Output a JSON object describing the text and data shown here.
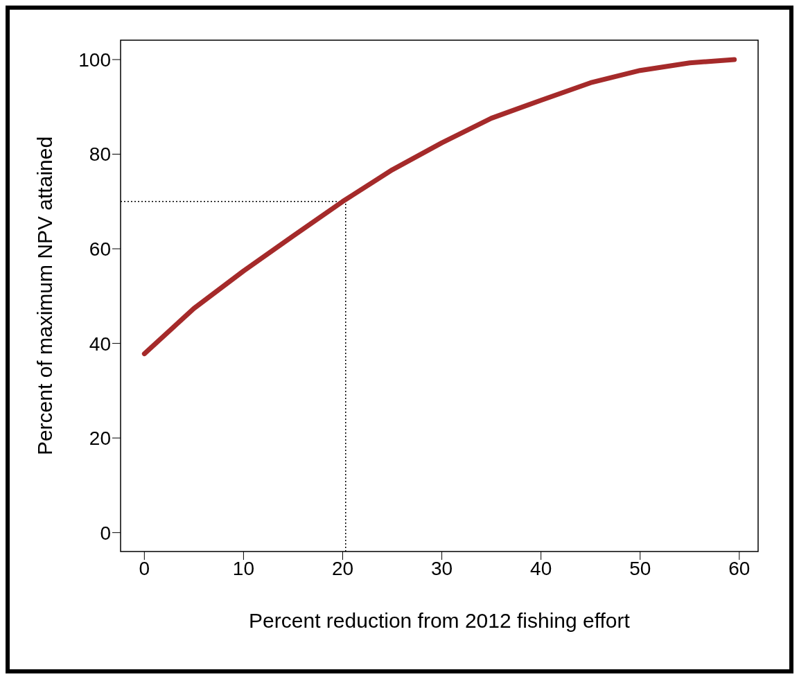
{
  "chart_data": {
    "type": "line",
    "xlabel": "Percent reduction from 2012 fishing effort",
    "ylabel": "Percent of maximum NPV attained",
    "x": [
      0,
      5,
      10,
      15,
      20,
      25,
      30,
      35,
      40,
      45,
      50,
      55,
      59.5
    ],
    "series": [
      {
        "color": "#a52a2a",
        "values": [
          37.8,
          47.4,
          55.3,
          62.7,
          70,
          76.7,
          82.4,
          87.6,
          91.4,
          95.1,
          97.7,
          99.3,
          100
        ]
      }
    ],
    "xlim": [
      -2.4,
      61.9
    ],
    "ylim": [
      -4,
      104.1
    ],
    "xticks": [
      0,
      10,
      20,
      30,
      40,
      50,
      60
    ],
    "yticks": [
      0,
      20,
      40,
      60,
      80,
      100
    ],
    "grid": false,
    "legend": false,
    "marker": "none",
    "line_style": "solid",
    "ref_lines": [
      {
        "axis": "y",
        "value": 70,
        "line_style": "dotted",
        "color": "#000000"
      },
      {
        "axis": "x",
        "value": 20.3,
        "line_style": "dotted",
        "color": "#000000"
      }
    ]
  }
}
